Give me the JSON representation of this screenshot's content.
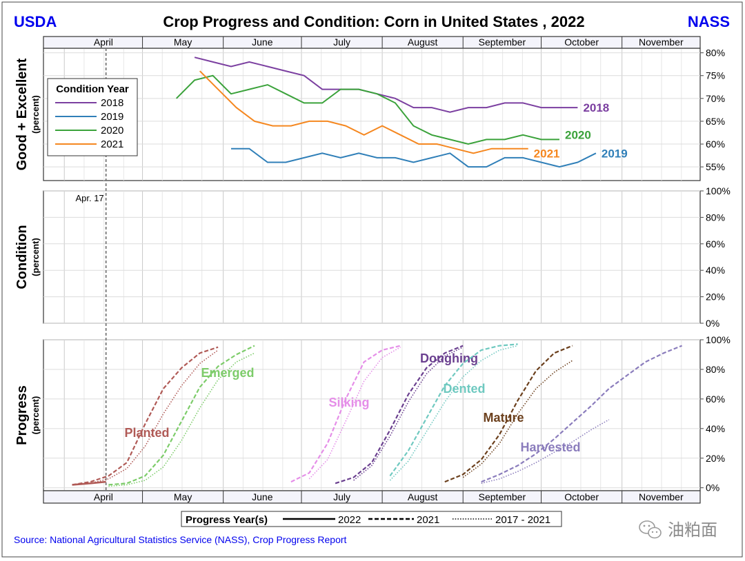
{
  "header": {
    "left_logo": "USDA",
    "right_logo": "NASS",
    "title": "Crop Progress and Condition: Corn in United States , 2022"
  },
  "source": "Source: National Agricultural Statistics Service (NASS), Crop Progress Report",
  "watermark": {
    "text": "油粕面",
    "icon": "wechat-icon"
  },
  "colors": {
    "blue_text": "#0000ee",
    "y2018": "#7b3fa0",
    "y2019": "#2f7fb8",
    "y2020": "#3aa23a",
    "y2021": "#f5871f",
    "planted": "#b05a56",
    "emerged": "#7dcc6a",
    "silking": "#e58ee8",
    "doughing": "#6a3f8f",
    "dented": "#6fc9c0",
    "mature": "#6b3f1c",
    "harvested": "#8a7cbc"
  },
  "chart_data": [
    {
      "type": "line",
      "panel": "good_excellent",
      "ylabel": "Good + Excellent",
      "ylabel_sub": "(percent)",
      "ylim": [
        52,
        81
      ],
      "yticks": [
        55,
        60,
        65,
        70,
        75,
        80
      ],
      "ytick_labels": [
        "55%",
        "60%",
        "65%",
        "70%",
        "75%",
        "80%"
      ],
      "months": [
        "April",
        "May",
        "June",
        "July",
        "August",
        "September",
        "October",
        "November"
      ],
      "xlim": [
        83,
        335
      ],
      "legend_title": "Condition Year",
      "legend_position": "top-left",
      "series": [
        {
          "name": "2018",
          "color_key": "y2018",
          "end_label": "2018",
          "x": [
            141,
            148,
            155,
            162,
            169,
            176,
            183,
            190,
            197,
            204,
            211,
            218,
            225,
            232,
            239,
            246,
            253,
            260,
            267,
            274,
            281,
            288
          ],
          "y": [
            79,
            78,
            77,
            78,
            77,
            76,
            75,
            72,
            72,
            72,
            71,
            70,
            68,
            68,
            67,
            68,
            68,
            69,
            69,
            68,
            68,
            68
          ]
        },
        {
          "name": "2019",
          "color_key": "y2019",
          "end_label": "2019",
          "x": [
            155,
            162,
            169,
            176,
            183,
            190,
            197,
            204,
            211,
            218,
            225,
            232,
            239,
            246,
            253,
            260,
            267,
            274,
            281,
            288,
            295
          ],
          "y": [
            59,
            59,
            56,
            56,
            57,
            58,
            57,
            58,
            57,
            57,
            56,
            57,
            58,
            55,
            55,
            57,
            57,
            56,
            55,
            56,
            58
          ]
        },
        {
          "name": "2020",
          "color_key": "y2020",
          "end_label": "2020",
          "x": [
            134,
            141,
            148,
            155,
            162,
            169,
            176,
            183,
            190,
            197,
            204,
            211,
            218,
            225,
            232,
            239,
            246,
            253,
            260,
            267,
            274,
            281
          ],
          "y": [
            70,
            74,
            75,
            71,
            72,
            73,
            71,
            69,
            69,
            72,
            72,
            71,
            69,
            64,
            62,
            61,
            60,
            61,
            61,
            62,
            61,
            61
          ]
        },
        {
          "name": "2021",
          "color_key": "y2021",
          "end_label": "2021",
          "x": [
            143,
            150,
            157,
            164,
            171,
            178,
            185,
            192,
            199,
            206,
            213,
            220,
            227,
            234,
            241,
            248,
            255,
            262,
            269
          ],
          "y": [
            76,
            72,
            68,
            65,
            64,
            64,
            65,
            65,
            64,
            62,
            64,
            62,
            60,
            60,
            59,
            58,
            59,
            59,
            59
          ]
        }
      ]
    },
    {
      "type": "line",
      "panel": "condition",
      "ylabel": "Condition",
      "ylabel_sub": "(percent)",
      "ylim": [
        0,
        100
      ],
      "yticks": [
        0,
        20,
        40,
        60,
        80,
        100
      ],
      "ytick_labels": [
        "0%",
        "20%",
        "40%",
        "60%",
        "80%",
        "100%"
      ],
      "annotation": "Apr. 17",
      "series": []
    },
    {
      "type": "line",
      "panel": "progress",
      "ylabel": "Progress",
      "ylabel_sub": "(percent)",
      "ylim": [
        -2,
        100
      ],
      "yticks": [
        0,
        20,
        40,
        60,
        80,
        100
      ],
      "ytick_labels": [
        "0%",
        "20%",
        "40%",
        "60%",
        "80%",
        "100%"
      ],
      "legend_title": "Progress Year(s)",
      "legend_entries": [
        "2022",
        "2021",
        "2017 - 2021"
      ],
      "legend_position": "bottom",
      "stages": [
        {
          "name": "Planted",
          "color_key": "planted",
          "y2022": {
            "x": [
              94,
              101,
              107
            ],
            "y": [
              2,
              3,
              4
            ]
          },
          "y2021": {
            "x": [
              94,
              101,
              108,
              115,
              122,
              129,
              136,
              143,
              150
            ],
            "y": [
              2,
              4,
              8,
              17,
              43,
              67,
              81,
              91,
              95
            ]
          },
          "avg": {
            "x": [
              94,
              101,
              108,
              115,
              122,
              129,
              136,
              143,
              150
            ],
            "y": [
              2,
              3,
              6,
              13,
              28,
              50,
              69,
              84,
              93
            ]
          }
        },
        {
          "name": "Emerged",
          "color_key": "emerged",
          "y2021": {
            "x": [
              108,
              115,
              122,
              129,
              136,
              143,
              150,
              157,
              164
            ],
            "y": [
              2,
              3,
              8,
              22,
              45,
              68,
              82,
              90,
              96
            ]
          },
          "avg": {
            "x": [
              108,
              115,
              122,
              129,
              136,
              143,
              150,
              157,
              164
            ],
            "y": [
              1,
              2,
              5,
              14,
              32,
              54,
              73,
              85,
              91
            ]
          }
        },
        {
          "name": "Silking",
          "color_key": "silking",
          "y2021": {
            "x": [
              178,
              185,
              192,
              199,
              206,
              213,
              220
            ],
            "y": [
              4,
              10,
              30,
              60,
              85,
              93,
              96
            ]
          },
          "avg": {
            "x": [
              185,
              192,
              199,
              206,
              213,
              220
            ],
            "y": [
              6,
              19,
              45,
              72,
              88,
              95
            ]
          }
        },
        {
          "name": "Doughing",
          "color_key": "doughing",
          "y2021": {
            "x": [
              195,
              202,
              209,
              216,
              223,
              230,
              237,
              244
            ],
            "y": [
              3,
              7,
              17,
              39,
              63,
              81,
              91,
              96
            ]
          },
          "avg": {
            "x": [
              202,
              209,
              216,
              223,
              230,
              237,
              244
            ],
            "y": [
              5,
              15,
              35,
              58,
              77,
              89,
              95
            ]
          }
        },
        {
          "name": "Dented",
          "color_key": "dented",
          "y2021": {
            "x": [
              216,
              223,
              230,
              237,
              244,
              251,
              258,
              265
            ],
            "y": [
              8,
              25,
              47,
              69,
              84,
              93,
              96,
              97
            ]
          },
          "avg": {
            "x": [
              216,
              223,
              230,
              237,
              244,
              251,
              258,
              265
            ],
            "y": [
              5,
              18,
              38,
              58,
              75,
              86,
              93,
              96
            ]
          }
        },
        {
          "name": "Mature",
          "color_key": "mature",
          "y2021": {
            "x": [
              237,
              244,
              251,
              258,
              265,
              272,
              279,
              286
            ],
            "y": [
              4,
              9,
              19,
              36,
              59,
              79,
              91,
              96
            ]
          },
          "avg": {
            "x": [
              244,
              251,
              258,
              265,
              272,
              279,
              286
            ],
            "y": [
              7,
              16,
              30,
              50,
              67,
              78,
              86
            ]
          }
        },
        {
          "name": "Harvested",
          "color_key": "harvested",
          "y2021": {
            "x": [
              251,
              258,
              265,
              272,
              279,
              286,
              293,
              300,
              307,
              314,
              321,
              328
            ],
            "y": [
              4,
              9,
              15,
              23,
              33,
              44,
              55,
              67,
              76,
              85,
              91,
              96
            ]
          },
          "avg": {
            "x": [
              251,
              258,
              265,
              272,
              279,
              286,
              293,
              300
            ],
            "y": [
              3,
              6,
              11,
              17,
              24,
              31,
              39,
              46
            ]
          }
        }
      ]
    }
  ]
}
